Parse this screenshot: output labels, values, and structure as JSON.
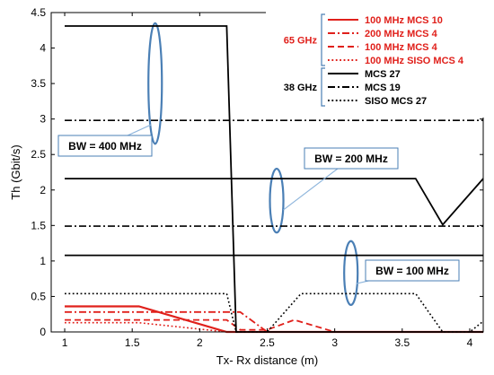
{
  "chart_data": {
    "type": "line",
    "xlabel": "Tx- Rx distance (m)",
    "ylabel": "Th (Gbit/s)",
    "xlim": [
      0.9,
      4.1
    ],
    "ylim": [
      0,
      4.5
    ],
    "xticks": [
      "1",
      "1.5",
      "2",
      "2.5",
      "3",
      "3.5",
      "4"
    ],
    "yticks": [
      "0",
      "0.5",
      "1",
      "1.5",
      "2",
      "2.5",
      "3",
      "3.5",
      "4",
      "4.5"
    ],
    "grid": false,
    "legend_groups": [
      {
        "label": "65 GHz",
        "color": "#e0201b",
        "entries": [
          0,
          1,
          2,
          3
        ]
      },
      {
        "label": "38 GHz",
        "color": "#000000",
        "entries": [
          4,
          5,
          6
        ]
      }
    ],
    "series": [
      {
        "name": "100 MHz MCS 10",
        "color": "#e0201b",
        "dash": "solid",
        "width": 2.2,
        "x": [
          1.0,
          1.55,
          2.2,
          2.3,
          4.1
        ],
        "y": [
          0.36,
          0.36,
          0.0,
          0.0,
          0.0
        ]
      },
      {
        "name": "200 MHz MCS 4",
        "color": "#e0201b",
        "dash": "dashdot",
        "width": 1.8,
        "x": [
          1.0,
          2.3,
          2.5,
          4.1
        ],
        "y": [
          0.28,
          0.28,
          0.0,
          0.0
        ]
      },
      {
        "name": "100 MHz MCS 4",
        "color": "#e0201b",
        "dash": "dashed",
        "width": 1.8,
        "x": [
          1.0,
          2.2,
          2.3,
          2.5,
          2.7,
          3.0,
          4.1
        ],
        "y": [
          0.17,
          0.17,
          0.03,
          0.03,
          0.17,
          0.0,
          0.0
        ]
      },
      {
        "name": "100 MHz SISO MCS 4",
        "color": "#e0201b",
        "dash": "dotted",
        "width": 1.6,
        "x": [
          1.0,
          1.55,
          2.2,
          2.3,
          4.1
        ],
        "y": [
          0.13,
          0.13,
          0.0,
          0.0,
          0.0
        ]
      },
      {
        "name": "MCS 27",
        "color": "#000000",
        "dash": "solid",
        "width": 1.8,
        "x": [
          1.0,
          2.2,
          2.27,
          4.1
        ],
        "y": [
          4.31,
          4.31,
          0.0,
          0.0
        ]
      },
      {
        "name": "MCS 27",
        "color": "#000000",
        "dash": "solid",
        "width": 1.8,
        "x": [
          1.0,
          3.6,
          3.8,
          4.1
        ],
        "y": [
          2.16,
          2.16,
          1.51,
          2.16
        ]
      },
      {
        "name": "MCS 27",
        "color": "#000000",
        "dash": "solid",
        "width": 1.8,
        "x": [
          1.0,
          4.1
        ],
        "y": [
          1.08,
          1.08
        ]
      },
      {
        "name": "MCS 19",
        "color": "#000000",
        "dash": "dashdot",
        "width": 1.6,
        "x": [
          1.0,
          4.1
        ],
        "y": [
          2.98,
          2.98
        ]
      },
      {
        "name": "MCS 19",
        "color": "#000000",
        "dash": "dashdot",
        "width": 1.6,
        "x": [
          1.0,
          4.1
        ],
        "y": [
          1.49,
          1.49
        ]
      },
      {
        "name": "SISO MCS 27",
        "color": "#000000",
        "dash": "dotted",
        "width": 1.6,
        "x": [
          1.0,
          2.2,
          2.27,
          2.5,
          2.75,
          3.6,
          3.8,
          4.0,
          4.1
        ],
        "y": [
          0.54,
          0.54,
          0.0,
          0.0,
          0.54,
          0.54,
          0.0,
          0.0,
          0.15
        ]
      }
    ],
    "legend": [
      {
        "label": "100 MHz MCS 10",
        "color": "#e0201b",
        "dash": "solid"
      },
      {
        "label": "200 MHz MCS 4",
        "color": "#e0201b",
        "dash": "dashdot"
      },
      {
        "label": "100 MHz MCS 4",
        "color": "#e0201b",
        "dash": "dashed"
      },
      {
        "label": "100 MHz SISO MCS 4",
        "color": "#e0201b",
        "dash": "dotted"
      },
      {
        "label": "MCS 27",
        "color": "#000000",
        "dash": "solid"
      },
      {
        "label": "MCS 19",
        "color": "#000000",
        "dash": "dashdot"
      },
      {
        "label": "SISO MCS 27",
        "color": "#000000",
        "dash": "dotted"
      }
    ],
    "annotations": [
      {
        "text": "BW = 400 MHz",
        "ellipse": {
          "x": 1.67,
          "y": 3.5,
          "rx_x": 0.05,
          "ry_y": 0.85
        }
      },
      {
        "text": "BW = 200 MHz",
        "ellipse": {
          "x": 2.57,
          "y": 1.85,
          "rx_x": 0.05,
          "ry_y": 0.45
        }
      },
      {
        "text": "BW = 100 MHz",
        "ellipse": {
          "x": 3.12,
          "y": 0.83,
          "rx_x": 0.05,
          "ry_y": 0.45
        }
      }
    ],
    "ellipse_color": "#4a7fb5"
  }
}
